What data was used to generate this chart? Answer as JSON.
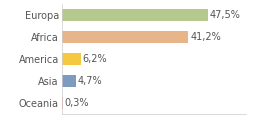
{
  "categories": [
    "Europa",
    "Africa",
    "America",
    "Asia",
    "Oceania"
  ],
  "values": [
    47.5,
    41.2,
    6.2,
    4.7,
    0.3
  ],
  "labels": [
    "47,5%",
    "41,2%",
    "6,2%",
    "4,7%",
    "0,3%"
  ],
  "bar_colors": [
    "#b5c98e",
    "#e8b48a",
    "#f5c842",
    "#7e9bbf",
    "#f0a0a0"
  ],
  "background_color": "#ffffff",
  "label_fontsize": 7.0,
  "tick_fontsize": 7.0,
  "xlim_max": 60,
  "bar_height": 0.55
}
